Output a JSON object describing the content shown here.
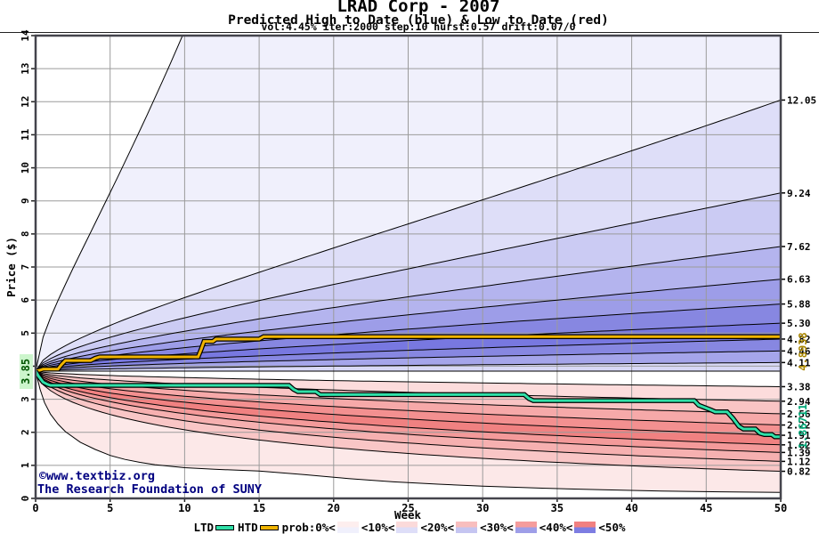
{
  "header": {
    "title": "LRAD Corp - 2007",
    "subtitle": "Predicted High to Date (blue) &  Low to Date (red)",
    "params": "vol:4.45% iter:2000 step:10 hurst:0.57 drift:0.07/0"
  },
  "footer": {
    "copyright_line1": "©www.textbiz.org",
    "copyright_line2": "The Research Foundation of SUNY"
  },
  "annotations": {
    "start_price_label": "3.85",
    "htd_final_label": "4.8938",
    "ltd_final_label": "1.86711"
  },
  "colors": {
    "htd": "#f0b400",
    "ltd": "#2fe0a8",
    "htd_label": "#a98600",
    "ltd_label": "#00a878",
    "start_label_bg": "#ccf5cc",
    "start_label_fg": "#005500",
    "grid": "#9b9b9b",
    "border": "#44444c",
    "copyright": "#000080"
  },
  "legend": {
    "items": [
      {
        "label": "LTD",
        "swatch": "line",
        "color": "#2fe0a8"
      },
      {
        "label": "HTD",
        "swatch": "line",
        "color": "#f0b400"
      },
      {
        "label": "prob:0%<",
        "swatch": "band",
        "top": "#fdeeee",
        "bottom": "#f0f0fc"
      },
      {
        "label": "<10%<",
        "swatch": "band",
        "top": "#fbdada",
        "bottom": "#dedef8"
      },
      {
        "label": "<20%<",
        "swatch": "band",
        "top": "#f8bebe",
        "bottom": "#c5c5f1"
      },
      {
        "label": "<30%<",
        "swatch": "band",
        "top": "#f59c9c",
        "bottom": "#9e9ee8"
      },
      {
        "label": "<40%<",
        "swatch": "band",
        "top": "#f18080",
        "bottom": "#7d7de2"
      },
      {
        "label": "<50%",
        "swatch": "none"
      }
    ]
  },
  "chart_data": {
    "type": "area",
    "subtype": "probability-fan",
    "title": "LRAD Corp - 2007",
    "x_axis": {
      "label": "Week",
      "min": 0,
      "max": 50,
      "tick_step": 5,
      "ticks": [
        0,
        5,
        10,
        15,
        20,
        25,
        30,
        35,
        40,
        45,
        50
      ]
    },
    "y_axis": {
      "label": "Price ($)",
      "min": 0,
      "max": 14,
      "tick_step": 1,
      "ticks": [
        0,
        1,
        2,
        3,
        4,
        5,
        6,
        7,
        8,
        9,
        10,
        11,
        12,
        13,
        14
      ]
    },
    "start_price": 3.85,
    "curve_shape_hurst": 0.57,
    "high_boundaries_week50": [
      12.05,
      9.24,
      7.62,
      6.63,
      5.88,
      5.3,
      4.82,
      4.46,
      4.11
    ],
    "low_boundaries_week50": [
      3.38,
      2.94,
      2.56,
      2.22,
      1.91,
      1.62,
      1.39,
      1.12,
      0.82
    ],
    "upper_outer_final": 100,
    "lower_outer_points": [
      [
        0,
        3.85
      ],
      [
        0.3,
        3.3
      ],
      [
        0.6,
        2.9
      ],
      [
        1,
        2.55
      ],
      [
        1.5,
        2.25
      ],
      [
        2,
        2.02
      ],
      [
        3,
        1.7
      ],
      [
        4,
        1.48
      ],
      [
        5,
        1.3
      ],
      [
        6,
        1.18
      ],
      [
        7,
        1.09
      ],
      [
        8,
        1.02
      ],
      [
        10,
        0.93
      ],
      [
        12,
        0.88
      ],
      [
        15,
        0.83
      ],
      [
        18,
        0.72
      ],
      [
        21,
        0.6
      ],
      [
        24,
        0.5
      ],
      [
        27,
        0.43
      ],
      [
        30,
        0.37
      ],
      [
        34,
        0.31
      ],
      [
        38,
        0.26
      ],
      [
        42,
        0.22
      ],
      [
        46,
        0.2
      ],
      [
        50,
        0.18
      ]
    ],
    "band_colors_high": [
      "#f0f0fc",
      "#dedef8",
      "#cbcbf3",
      "#b4b4ee",
      "#9d9de8",
      "#8787e1",
      "#7878e0",
      "#8787e1",
      "#a5a5ea",
      "#d8d8f6"
    ],
    "band_colors_low": [
      null,
      "#fcdcdc",
      "#f9c4c4",
      "#f6a9a9",
      "#f39090",
      "#f08181",
      "#f49a9a",
      "#f6b0b0",
      "#f9c6c6",
      "#fce8e8"
    ],
    "htd_line": {
      "name": "HTD",
      "final_value": 4.8938,
      "points": [
        [
          0,
          3.85
        ],
        [
          0.3,
          3.88
        ],
        [
          0.5,
          3.91
        ],
        [
          1.5,
          3.91
        ],
        [
          1.7,
          4.03
        ],
        [
          2.0,
          4.17
        ],
        [
          3.7,
          4.17
        ],
        [
          4.0,
          4.24
        ],
        [
          4.3,
          4.28
        ],
        [
          10.9,
          4.28
        ],
        [
          11.1,
          4.5
        ],
        [
          11.3,
          4.75
        ],
        [
          11.9,
          4.75
        ],
        [
          12.1,
          4.82
        ],
        [
          15.0,
          4.82
        ],
        [
          15.3,
          4.8938
        ],
        [
          50,
          4.8938
        ]
      ]
    },
    "ltd_line": {
      "name": "LTD",
      "final_value": 1.86711,
      "points": [
        [
          0,
          3.85
        ],
        [
          0.2,
          3.7
        ],
        [
          0.5,
          3.52
        ],
        [
          0.8,
          3.45
        ],
        [
          1.0,
          3.42
        ],
        [
          17.0,
          3.42
        ],
        [
          17.3,
          3.3
        ],
        [
          17.6,
          3.23
        ],
        [
          18.8,
          3.23
        ],
        [
          19.1,
          3.14
        ],
        [
          32.8,
          3.14
        ],
        [
          33.1,
          3.02
        ],
        [
          33.4,
          2.96
        ],
        [
          44.2,
          2.96
        ],
        [
          44.5,
          2.82
        ],
        [
          44.9,
          2.75
        ],
        [
          45.3,
          2.68
        ],
        [
          45.6,
          2.62
        ],
        [
          46.4,
          2.62
        ],
        [
          46.8,
          2.42
        ],
        [
          47.2,
          2.18
        ],
        [
          47.5,
          2.1
        ],
        [
          48.3,
          2.1
        ],
        [
          48.6,
          1.97
        ],
        [
          48.9,
          1.93
        ],
        [
          49.4,
          1.93
        ],
        [
          49.6,
          1.867
        ],
        [
          50,
          1.867
        ]
      ]
    }
  }
}
